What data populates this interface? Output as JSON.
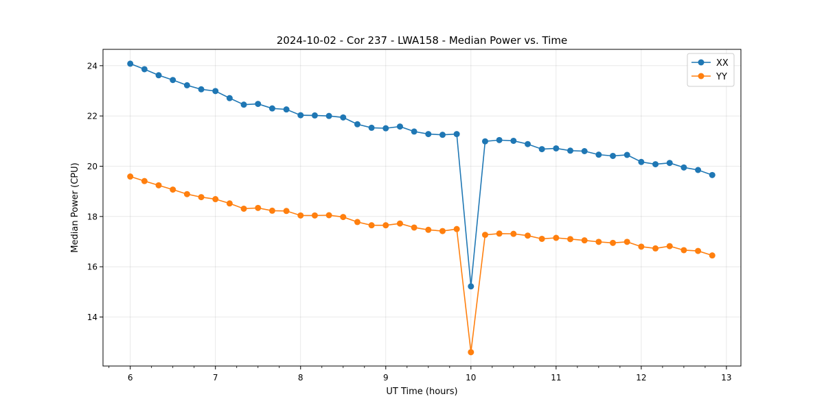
{
  "chart_data": {
    "type": "line",
    "title": "2024-10-02 - Cor 237 - LWA158 - Median Power vs. Time",
    "xlabel": "UT Time (hours)",
    "ylabel": "Median Power (CPU)",
    "xlim": [
      5.68,
      13.17
    ],
    "ylim": [
      12.05,
      24.65
    ],
    "xticks": [
      6,
      7,
      8,
      9,
      10,
      11,
      12,
      13
    ],
    "xtick_labels": [
      "6",
      "7",
      "8",
      "9",
      "10",
      "11",
      "12",
      "13"
    ],
    "yticks": [
      14,
      16,
      18,
      20,
      22,
      24
    ],
    "ytick_labels": [
      "14",
      "16",
      "18",
      "20",
      "22",
      "24"
    ],
    "grid": true,
    "legend_position": "top-right",
    "x": [
      6.0,
      6.1667,
      6.3333,
      6.5,
      6.6667,
      6.8333,
      7.0,
      7.1667,
      7.3333,
      7.5,
      7.6667,
      7.8333,
      8.0,
      8.1667,
      8.3333,
      8.5,
      8.6667,
      8.8333,
      9.0,
      9.1667,
      9.3333,
      9.5,
      9.6667,
      9.8333,
      10.0,
      10.1667,
      10.3333,
      10.5,
      10.6667,
      10.8333,
      11.0,
      11.1667,
      11.3333,
      11.5,
      11.6667,
      11.8333,
      12.0,
      12.1667,
      12.3333,
      12.5,
      12.6667,
      12.8333
    ],
    "series": [
      {
        "name": "XX",
        "color": "#1f77b4",
        "values": [
          24.08,
          23.86,
          23.62,
          23.43,
          23.22,
          23.06,
          22.99,
          22.71,
          22.45,
          22.48,
          22.3,
          22.26,
          22.03,
          22.02,
          22.0,
          21.94,
          21.67,
          21.53,
          21.51,
          21.58,
          21.38,
          21.28,
          21.25,
          21.28,
          15.22,
          20.99,
          21.04,
          21.01,
          20.88,
          20.68,
          20.71,
          20.62,
          20.6,
          20.46,
          20.41,
          20.45,
          20.17,
          20.08,
          20.13,
          19.95,
          19.85,
          19.65
        ]
      },
      {
        "name": "YY",
        "color": "#ff7f0e",
        "values": [
          19.59,
          19.41,
          19.24,
          19.07,
          18.89,
          18.77,
          18.69,
          18.52,
          18.31,
          18.34,
          18.23,
          18.22,
          18.04,
          18.04,
          18.05,
          17.98,
          17.78,
          17.65,
          17.65,
          17.72,
          17.56,
          17.47,
          17.42,
          17.5,
          12.6,
          17.27,
          17.32,
          17.31,
          17.24,
          17.11,
          17.15,
          17.1,
          17.05,
          16.99,
          16.95,
          16.99,
          16.8,
          16.73,
          16.82,
          16.66,
          16.63,
          16.45
        ]
      }
    ]
  },
  "colors": {
    "axis": "#000000",
    "grid": "#b0b0b0",
    "legend_border": "#cccccc"
  }
}
